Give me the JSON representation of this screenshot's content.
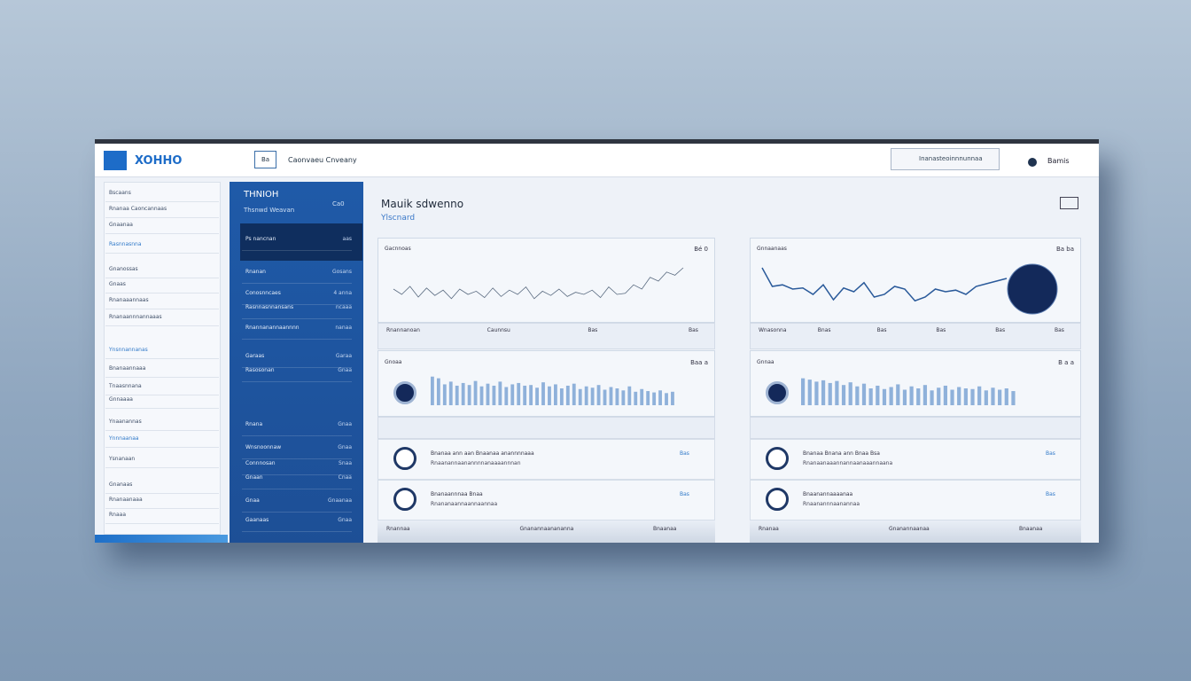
{
  "header": {
    "logo_text": "XOHHO",
    "button": "Ba",
    "link": "Caonvaeu Cnveany",
    "search": "Inanasteoinnnunnaa",
    "user": "Bamis"
  },
  "sidebar": {
    "items": [
      "Bscaans",
      "Rnanaa Caoncannaas",
      "Gnaanaa",
      "Rasnnasnna",
      "Gnanossas",
      "Gnaas",
      "Rnanaaannaas",
      "Rnanaannnannaaas",
      "Ynsnnannanas",
      "Bnanaannaaa",
      "Tnaasnnana",
      "Gnnaaaa",
      "Ynaanannas",
      "Ynnnaanaa",
      "Ysnanaan",
      "Gnanaas",
      "Rnanaanaaa",
      "Rnaaa"
    ]
  },
  "panel": {
    "title": "THNIOH",
    "subtitle": "Thsnwd Weavan",
    "badge": "Ca0",
    "rows": [
      {
        "label": "Ps nancnan",
        "value": "aas"
      },
      {
        "label": "Rnanan",
        "value": "Gosans"
      },
      {
        "label": "Conosnncaes",
        "value": "4 anna"
      },
      {
        "label": "Rasnnasnnansans",
        "value": "ncaaa"
      },
      {
        "label": "Rnannanannaannnn",
        "value": "nanaa"
      },
      {
        "label": "Garaas",
        "value": "Garaa"
      },
      {
        "label": "Rasosonan",
        "value": "Gnaa"
      },
      {
        "label": "Rnana",
        "value": "Gnaa"
      },
      {
        "label": "Wnsnoonnaw",
        "value": "Gnaa"
      },
      {
        "label": "Connnosan",
        "value": "Snaa"
      },
      {
        "label": "Gnaan",
        "value": "Cnaa"
      },
      {
        "label": "Gnaa",
        "value": "Gnaanaa"
      },
      {
        "label": "Gaanaas",
        "value": "Gnaa"
      }
    ]
  },
  "main": {
    "title": "Mauik sdwenno",
    "subtitle": "Ylscnard"
  },
  "cards": [
    {
      "line_title": "Gacnnoas",
      "line_value": "Bé 0",
      "line_values": [
        40,
        30,
        45,
        25,
        42,
        28,
        38,
        22,
        40,
        30,
        36,
        24,
        42,
        26,
        38,
        30,
        44,
        22,
        36,
        28,
        40,
        26,
        34,
        30,
        38,
        24,
        44,
        30,
        32,
        48,
        40,
        62,
        55,
        72,
        66,
        80
      ],
      "row_labels": [
        "Rnannanoan",
        "Caunnsu",
        "Bas",
        "Bas"
      ],
      "bar_title": "Gnoaa",
      "bar_value": "Baa a",
      "bar_values": [
        85,
        80,
        62,
        70,
        58,
        66,
        60,
        72,
        56,
        64,
        58,
        70,
        54,
        62,
        66,
        58,
        60,
        52,
        68,
        56,
        62,
        50,
        58,
        64,
        48,
        56,
        52,
        60,
        46,
        54,
        50,
        44,
        56,
        40,
        48,
        42,
        38,
        44,
        36,
        40
      ],
      "list": [
        {
          "text1": "Bnanaa ann aan Bnaanaa anannnnaaa",
          "text2": "Rnaanannaanannnnanaaaannnan",
          "value": "Bas"
        },
        {
          "text1": "Bnanaannnaa Bnaa",
          "text2": "Rnananaannaannaannaa",
          "value": "Bas"
        }
      ],
      "footer": [
        "Rnannaa",
        "Gnanannaanananna",
        "Bnaanaa"
      ]
    },
    {
      "line_title": "Gnnaanaas",
      "line_value": "Ba ba",
      "line_values": [
        80,
        45,
        48,
        40,
        42,
        30,
        48,
        20,
        42,
        35,
        52,
        25,
        30,
        45,
        40,
        18,
        25,
        40,
        35,
        38,
        30,
        45,
        50,
        55,
        60
      ],
      "row_labels": [
        "Wnasonna",
        "Bnas",
        "Bas",
        "Bas",
        "Bas",
        "Bas"
      ],
      "bar_title": "Gnnaa",
      "bar_value": "B a a",
      "bar_values": [
        80,
        76,
        70,
        74,
        66,
        72,
        60,
        68,
        56,
        64,
        50,
        58,
        48,
        54,
        62,
        46,
        56,
        50,
        60,
        44,
        52,
        58,
        46,
        54,
        50,
        48,
        56,
        44,
        52,
        46,
        50,
        42
      ],
      "list": [
        {
          "text1": "Bnanaa Bnana ann Bnaa Bsa",
          "text2": "Rnanaanaaannannaanaaannaana",
          "value": "Bas"
        },
        {
          "text1": "Bnaanannaaaanaa",
          "text2": "Rnaanannnaanannaa",
          "value": "Bas"
        }
      ],
      "footer": [
        "Rnanaa",
        "Gnanannaanaa",
        "Bnaanaa"
      ]
    }
  ]
}
